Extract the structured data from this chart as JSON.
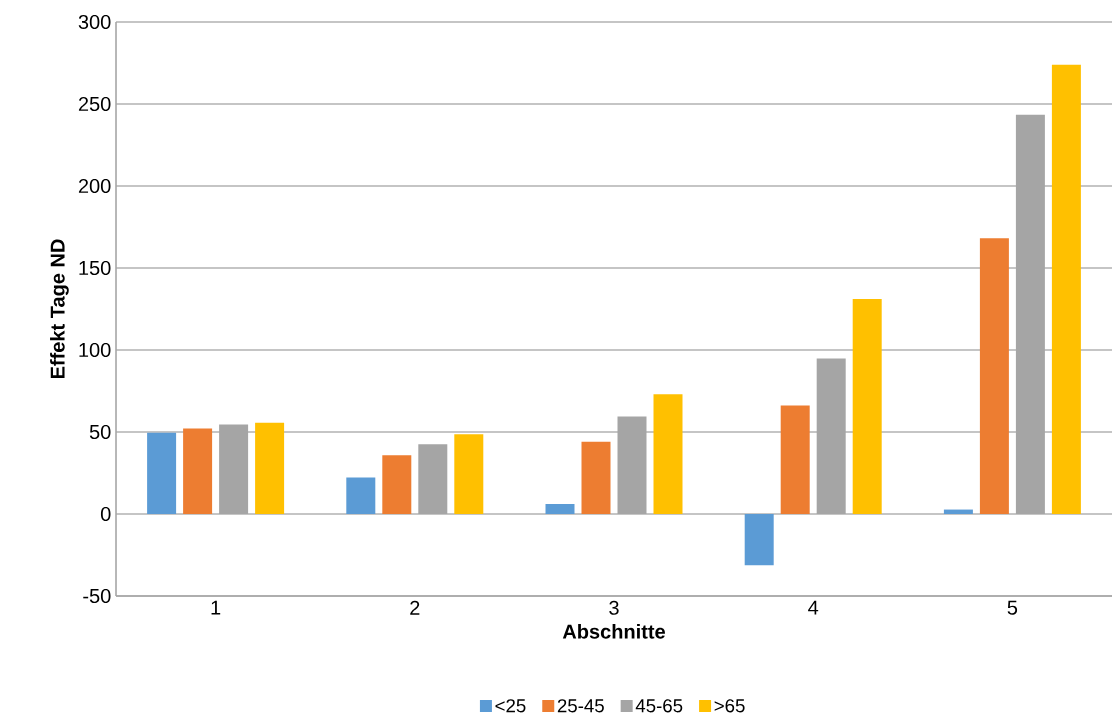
{
  "chart_data": {
    "type": "bar",
    "xlabel": "Abschnitte",
    "ylabel": "Effekt Tage ND",
    "categories": [
      "1",
      "2",
      "3",
      "4",
      "5"
    ],
    "series": [
      {
        "name": "<25",
        "color": "#5b9bd5",
        "values": [
          49.5,
          22.3,
          6.1,
          -31.3,
          2.7
        ]
      },
      {
        "name": "25-45",
        "color": "#ed7d31",
        "values": [
          52.2,
          35.8,
          44.1,
          66.2,
          168.2
        ]
      },
      {
        "name": "45-65",
        "color": "#a5a5a5",
        "values": [
          54.5,
          42.5,
          59.5,
          94.8,
          243.5
        ]
      },
      {
        "name": ">65",
        "color": "#ffc000",
        "values": [
          55.7,
          48.6,
          73.0,
          131.1,
          273.9
        ]
      }
    ],
    "ylim": [
      -50,
      300
    ],
    "yticks": [
      -50,
      0,
      50,
      100,
      150,
      200,
      250,
      300
    ],
    "grid": "y",
    "legend": "bottom"
  }
}
